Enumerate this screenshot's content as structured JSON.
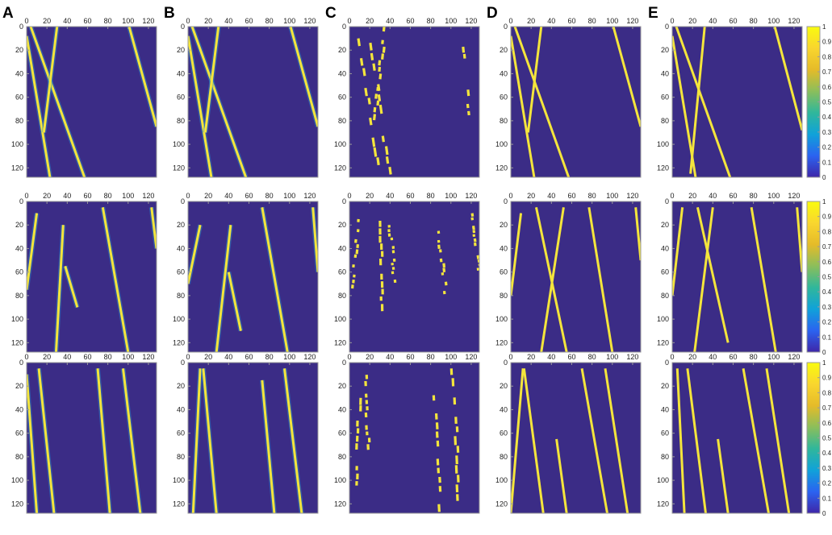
{
  "figure": {
    "panel_letters": [
      "A",
      "B",
      "C",
      "D",
      "E"
    ],
    "background_color": "#3b2c86",
    "line_color": "#f4e53c",
    "axis_color": "#9a9a9a"
  },
  "chart_data": {
    "type": "heatmap",
    "grid": false,
    "matrix_size": 128,
    "x_ticks": [
      0,
      20,
      40,
      60,
      80,
      100,
      120
    ],
    "y_ticks": [
      0,
      20,
      40,
      60,
      80,
      100,
      120
    ],
    "xlim": [
      0,
      128
    ],
    "ylim": [
      128,
      0
    ],
    "colorbar": {
      "range": [
        0,
        1
      ],
      "ticks": [
        "1",
        "0.9",
        "0.8",
        "0.7",
        "0.6",
        "0.5",
        "0.4",
        "0.3",
        "0.2",
        "0.1",
        "0"
      ],
      "colormap": [
        "#3e26a8",
        "#2b63f0",
        "#10a2d9",
        "#30b79b",
        "#8bbe5b",
        "#e5bb29",
        "#f9d62e",
        "#f9fb0e"
      ]
    },
    "rows": [
      {
        "columns": [
          {
            "label": "A",
            "lines": [
              [
                [
                  4,
                  0
                ],
                [
                  57,
                  128
                ]
              ],
              [
                [
                  0,
                  8
                ],
                [
                  23,
                  128
                ]
              ],
              [
                [
                  30,
                  0
                ],
                [
                  17,
                  90
                ]
              ],
              [
                [
                  101,
                  0
                ],
                [
                  128,
                  85
                ]
              ]
            ],
            "noisy": true
          },
          {
            "label": "B",
            "lines": [
              [
                [
                  4,
                  0
                ],
                [
                  57,
                  128
                ]
              ],
              [
                [
                  0,
                  8
                ],
                [
                  23,
                  128
                ]
              ],
              [
                [
                  30,
                  0
                ],
                [
                  17,
                  90
                ]
              ],
              [
                [
                  101,
                  0
                ],
                [
                  128,
                  85
                ]
              ]
            ],
            "noisy": true
          },
          {
            "label": "C",
            "lines": [
              [
                [
                  10,
                  10
                ],
                [
                  30,
                  128
                ]
              ],
              [
                [
                  20,
                  5
                ],
                [
                  40,
                  128
                ]
              ],
              [
                [
                  35,
                  0
                ],
                [
                  25,
                  80
                ]
              ],
              [
                [
                  110,
                  5
                ],
                [
                  120,
                  90
                ]
              ]
            ],
            "fragmented": true
          },
          {
            "label": "D",
            "lines": [
              [
                [
                  4,
                  0
                ],
                [
                  57,
                  128
                ]
              ],
              [
                [
                  0,
                  8
                ],
                [
                  23,
                  128
                ]
              ],
              [
                [
                  30,
                  0
                ],
                [
                  17,
                  90
                ]
              ],
              [
                [
                  101,
                  0
                ],
                [
                  128,
                  85
                ]
              ]
            ]
          },
          {
            "label": "E",
            "lines": [
              [
                [
                  4,
                  0
                ],
                [
                  57,
                  128
                ]
              ],
              [
                [
                  0,
                  8
                ],
                [
                  23,
                  128
                ]
              ],
              [
                [
                  32,
                  0
                ],
                [
                  18,
                  125
                ]
              ],
              [
                [
                  101,
                  0
                ],
                [
                  128,
                  88
                ]
              ]
            ]
          }
        ]
      },
      {
        "columns": [
          {
            "label": "A",
            "lines": [
              [
                [
                  10,
                  10
                ],
                [
                  0,
                  75
                ]
              ],
              [
                [
                  36,
                  20
                ],
                [
                  29,
                  128
                ]
              ],
              [
                [
                  38,
                  55
                ],
                [
                  50,
                  90
                ]
              ],
              [
                [
                  75,
                  5
                ],
                [
                  100,
                  128
                ]
              ],
              [
                [
                  123,
                  5
                ],
                [
                  128,
                  40
                ]
              ]
            ],
            "noisy": true
          },
          {
            "label": "B",
            "lines": [
              [
                [
                  12,
                  20
                ],
                [
                  0,
                  70
                ]
              ],
              [
                [
                  42,
                  20
                ],
                [
                  28,
                  128
                ]
              ],
              [
                [
                  40,
                  60
                ],
                [
                  52,
                  110
                ]
              ],
              [
                [
                  73,
                  5
                ],
                [
                  98,
                  128
                ]
              ],
              [
                [
                  123,
                  5
                ],
                [
                  128,
                  60
                ]
              ]
            ],
            "noisy": true
          },
          {
            "label": "C",
            "lines": [
              [
                [
                  10,
                  15
                ],
                [
                  3,
                  75
                ]
              ],
              [
                [
                  30,
                  10
                ],
                [
                  32,
                  100
                ]
              ],
              [
                [
                  40,
                  20
                ],
                [
                  45,
                  70
                ]
              ],
              [
                [
                  88,
                  25
                ],
                [
                  95,
                  80
                ]
              ],
              [
                [
                  120,
                  10
                ],
                [
                  128,
                  60
                ]
              ]
            ],
            "fragmented": true
          },
          {
            "label": "D",
            "lines": [
              [
                [
                  10,
                  10
                ],
                [
                  0,
                  80
                ]
              ],
              [
                [
                  25,
                  5
                ],
                [
                  55,
                  128
                ]
              ],
              [
                [
                  52,
                  5
                ],
                [
                  30,
                  128
                ]
              ],
              [
                [
                  77,
                  5
                ],
                [
                  100,
                  128
                ]
              ],
              [
                [
                  123,
                  5
                ],
                [
                  128,
                  50
                ]
              ]
            ]
          },
          {
            "label": "E",
            "lines": [
              [
                [
                  10,
                  5
                ],
                [
                  0,
                  80
                ]
              ],
              [
                [
                  25,
                  5
                ],
                [
                  55,
                  120
                ]
              ],
              [
                [
                  40,
                  5
                ],
                [
                  22,
                  128
                ]
              ],
              [
                [
                  78,
                  5
                ],
                [
                  102,
                  128
                ]
              ],
              [
                [
                  123,
                  5
                ],
                [
                  128,
                  60
                ]
              ]
            ]
          }
        ]
      },
      {
        "columns": [
          {
            "label": "A",
            "lines": [
              [
                [
                  0,
                  10
                ],
                [
                  10,
                  128
                ]
              ],
              [
                [
                  12,
                  5
                ],
                [
                  27,
                  128
                ]
              ],
              [
                [
                  70,
                  5
                ],
                [
                  82,
                  128
                ]
              ],
              [
                [
                  95,
                  5
                ],
                [
                  112,
                  128
                ]
              ]
            ],
            "noisy": true
          },
          {
            "label": "B",
            "lines": [
              [
                [
                  12,
                  5
                ],
                [
                  5,
                  128
                ]
              ],
              [
                [
                  15,
                  5
                ],
                [
                  28,
                  128
                ]
              ],
              [
                [
                  73,
                  15
                ],
                [
                  85,
                  128
                ]
              ],
              [
                [
                  95,
                  5
                ],
                [
                  112,
                  128
                ]
              ]
            ],
            "noisy": true
          },
          {
            "label": "C",
            "lines": [
              [
                [
                  15,
                  5
                ],
                [
                  20,
                  80
                ]
              ],
              [
                [
                  10,
                  30
                ],
                [
                  7,
                  120
                ]
              ],
              [
                [
                  83,
                  20
                ],
                [
                  90,
                  128
                ]
              ],
              [
                [
                  102,
                  5
                ],
                [
                  108,
                  120
                ]
              ]
            ],
            "fragmented": true
          },
          {
            "label": "D",
            "lines": [
              [
                [
                  12,
                  5
                ],
                [
                  0,
                  128
                ]
              ],
              [
                [
                  13,
                  5
                ],
                [
                  32,
                  128
                ]
              ],
              [
                [
                  45,
                  65
                ],
                [
                  55,
                  128
                ]
              ],
              [
                [
                  70,
                  5
                ],
                [
                  95,
                  128
                ]
              ],
              [
                [
                  93,
                  5
                ],
                [
                  115,
                  128
                ]
              ]
            ]
          },
          {
            "label": "E",
            "lines": [
              [
                [
                  5,
                  5
                ],
                [
                  12,
                  128
                ]
              ],
              [
                [
                  15,
                  5
                ],
                [
                  33,
                  128
                ]
              ],
              [
                [
                  45,
                  65
                ],
                [
                  55,
                  128
                ]
              ],
              [
                [
                  70,
                  5
                ],
                [
                  95,
                  128
                ]
              ],
              [
                [
                  93,
                  5
                ],
                [
                  115,
                  128
                ]
              ]
            ]
          }
        ]
      }
    ]
  }
}
